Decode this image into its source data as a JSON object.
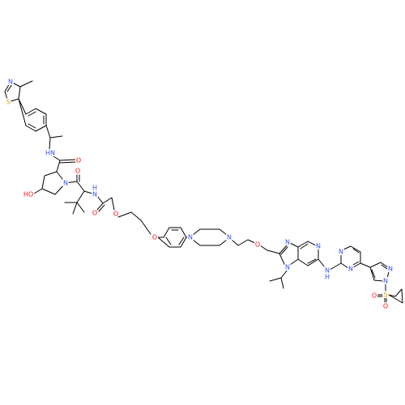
{
  "atoms": [
    "N",
    "S",
    "HN",
    "O",
    "N",
    "O",
    "HO",
    "H",
    "N",
    "O",
    "O",
    "O",
    "N",
    "N",
    "O",
    "N",
    "N",
    "N",
    "N",
    "H",
    "N",
    "N",
    "N",
    "N",
    "S",
    "O",
    "O"
  ]
}
